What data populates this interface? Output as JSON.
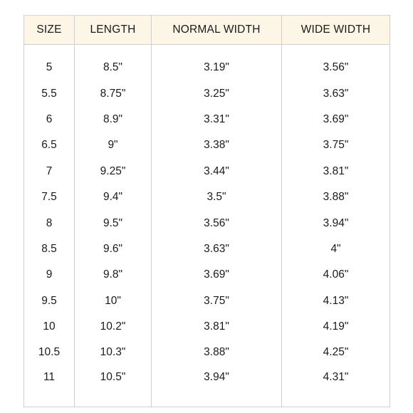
{
  "table": {
    "headers": [
      "SIZE",
      "LENGTH",
      "NORMAL WIDTH",
      "WIDE WIDTH"
    ],
    "rows": [
      [
        "5",
        "8.5\"",
        "3.19\"",
        "3.56\""
      ],
      [
        "5.5",
        "8.75\"",
        "3.25\"",
        "3.63\""
      ],
      [
        "6",
        "8.9\"",
        "3.31\"",
        "3.69\""
      ],
      [
        "6.5",
        "9\"",
        "3.38\"",
        "3.75\""
      ],
      [
        "7",
        "9.25\"",
        "3.44\"",
        "3.81\""
      ],
      [
        "7.5",
        "9.4\"",
        "3.5\"",
        "3.88\""
      ],
      [
        "8",
        "9.5\"",
        "3.56\"",
        "3.94\""
      ],
      [
        "8.5",
        "9.6\"",
        "3.63\"",
        "4\""
      ],
      [
        "9",
        "9.8\"",
        "3.69\"",
        "4.06\""
      ],
      [
        "9.5",
        "10\"",
        "3.75\"",
        "4.13\""
      ],
      [
        "10",
        "10.2\"",
        "3.81\"",
        "4.19\""
      ],
      [
        "10.5",
        "10.3\"",
        "3.88\"",
        "4.25\""
      ],
      [
        "11",
        "10.5\"",
        "3.94\"",
        "4.31\""
      ]
    ]
  },
  "colors": {
    "header_background": "#fdf6e6",
    "border": "#cfcfcf",
    "text": "#1a1a1a"
  }
}
